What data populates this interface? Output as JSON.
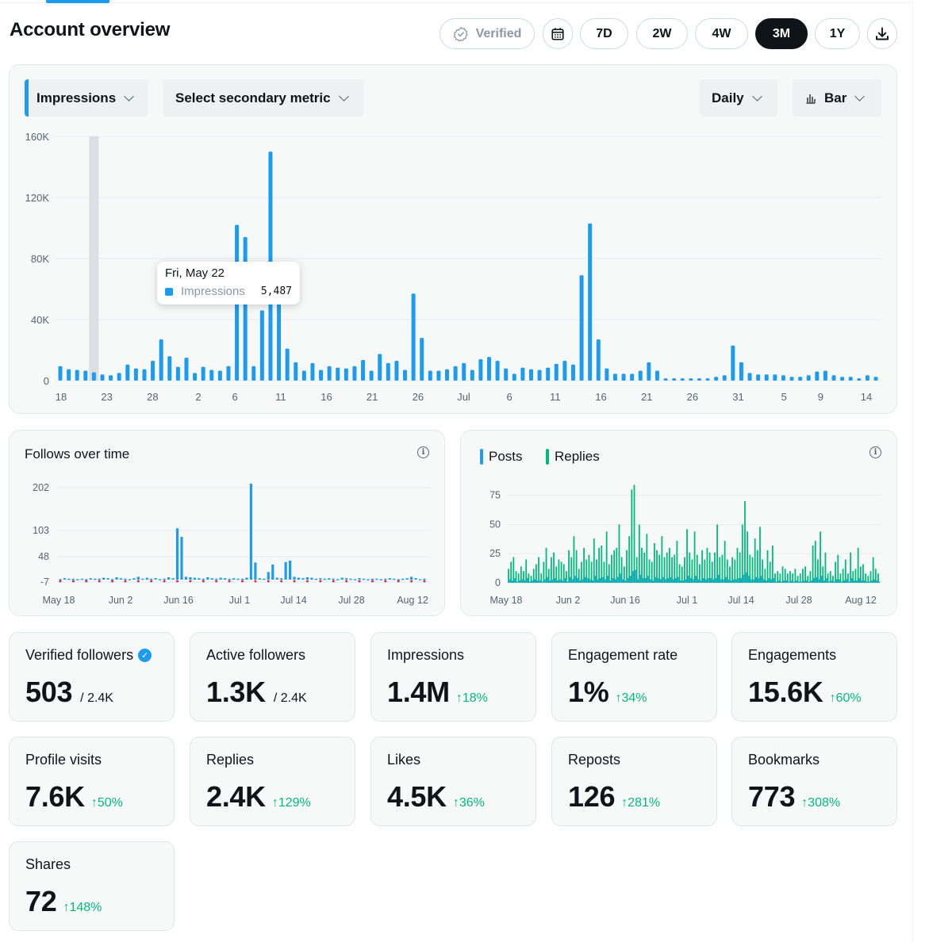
{
  "page": {
    "title": "Account overview"
  },
  "toolbar": {
    "verified_label": "Verified",
    "ranges": [
      {
        "label": "7D",
        "active": false
      },
      {
        "label": "2W",
        "active": false
      },
      {
        "label": "4W",
        "active": false
      },
      {
        "label": "3M",
        "active": true
      },
      {
        "label": "1Y",
        "active": false
      }
    ]
  },
  "main_chart": {
    "primary_metric": "Impressions",
    "secondary_metric_placeholder": "Select secondary metric",
    "granularity": "Daily",
    "chart_type_label": "Bar",
    "tooltip": {
      "date": "Fri, May 22",
      "series": "Impressions",
      "value": "5,487"
    }
  },
  "follows_chart": {
    "title": "Follows over time"
  },
  "posts_chart": {
    "legend": [
      "Posts",
      "Replies"
    ]
  },
  "chart_data": [
    {
      "type": "bar",
      "series": [
        {
          "name": "Impressions",
          "color": "#1d9bf0"
        }
      ],
      "y_ticks": [
        "0",
        "40K",
        "80K",
        "120K",
        "160K"
      ],
      "ylim": [
        0,
        160000
      ],
      "x_ticks": [
        "18",
        "23",
        "28",
        "2",
        "6",
        "11",
        "16",
        "21",
        "26",
        "Jul",
        "6",
        "11",
        "16",
        "21",
        "26",
        "31",
        "5",
        "9",
        "14"
      ],
      "highlight_index": 4,
      "values": [
        9500,
        7500,
        7000,
        6500,
        5487,
        4000,
        3500,
        5000,
        10500,
        8000,
        7500,
        13000,
        27000,
        16000,
        9000,
        15000,
        5000,
        9000,
        7000,
        6500,
        9500,
        102000,
        94000,
        9500,
        46000,
        150000,
        54000,
        21000,
        12000,
        6500,
        11500,
        7000,
        9500,
        8500,
        8000,
        9500,
        13500,
        6500,
        17500,
        11500,
        13000,
        7000,
        57000,
        28000,
        6500,
        6500,
        7500,
        9500,
        11500,
        7000,
        14000,
        15500,
        13000,
        8000,
        4500,
        8500,
        7500,
        7000,
        8500,
        11000,
        13000,
        10500,
        69000,
        103000,
        27000,
        8000,
        4500,
        4500,
        4500,
        6500,
        12000,
        6500,
        1500,
        1500,
        1500,
        1500,
        1500,
        1500,
        2500,
        3500,
        23000,
        12000,
        5000,
        4000,
        4000,
        4000,
        3500,
        2500,
        2500,
        3500,
        6000,
        6500,
        3500,
        2500,
        2500,
        1500,
        3500,
        2500
      ]
    },
    {
      "type": "bar",
      "title": "Follows over time",
      "series": [
        {
          "name": "Follows",
          "color": "#1d9bf0"
        }
      ],
      "y_ticks": [
        "-7",
        "48",
        "103",
        "202"
      ],
      "x_ticks": [
        "May 18",
        "Jun 2",
        "Jun 16",
        "Jul 1",
        "Jul 14",
        "Jul 28",
        "Aug 12"
      ],
      "values": [
        1,
        3,
        2,
        2,
        1,
        2,
        1,
        3,
        2,
        2,
        4,
        3,
        1,
        5,
        3,
        2,
        1,
        3,
        6,
        2,
        4,
        2,
        3,
        1,
        2,
        5,
        3,
        108,
        90,
        6,
        5,
        4,
        3,
        2,
        5,
        3,
        2,
        4,
        3,
        2,
        3,
        2,
        2,
        4,
        202,
        36,
        3,
        2,
        16,
        32,
        4,
        3,
        37,
        40,
        6,
        4,
        3,
        5,
        4,
        2,
        3,
        2,
        3,
        2,
        1,
        4,
        3,
        2,
        1,
        3,
        2,
        1,
        2,
        2,
        1,
        2,
        3,
        2,
        1,
        2,
        3,
        6,
        3,
        1,
        2
      ]
    },
    {
      "type": "bar",
      "series": [
        {
          "name": "Posts",
          "color": "#1d9bf0"
        },
        {
          "name": "Replies",
          "color": "#00ba7c"
        }
      ],
      "y_ticks": [
        "0",
        "25",
        "50",
        "75"
      ],
      "ylim": [
        0,
        85
      ],
      "x_ticks": [
        "May 18",
        "Jun 2",
        "Jun 16",
        "Jul 1",
        "Jul 14",
        "Jul 28",
        "Aug 12"
      ],
      "replies": [
        12,
        18,
        22,
        10,
        8,
        14,
        10,
        20,
        8,
        6,
        12,
        16,
        22,
        8,
        18,
        30,
        12,
        22,
        26,
        14,
        20,
        18,
        16,
        10,
        28,
        22,
        40,
        28,
        12,
        18,
        30,
        20,
        24,
        18,
        38,
        20,
        30,
        32,
        18,
        44,
        16,
        24,
        28,
        30,
        50,
        22,
        14,
        28,
        40,
        80,
        84,
        22,
        50,
        30,
        26,
        42,
        20,
        18,
        34,
        28,
        24,
        40,
        22,
        26,
        30,
        22,
        24,
        36,
        16,
        14,
        22,
        46,
        26,
        20,
        44,
        24,
        16,
        28,
        20,
        30,
        26,
        18,
        26,
        50,
        22,
        24,
        36,
        20,
        14,
        22,
        20,
        30,
        26,
        50,
        70,
        44,
        24,
        22,
        38,
        28,
        48,
        20,
        12,
        28,
        18,
        32,
        8,
        10,
        8,
        14,
        12,
        8,
        10,
        8,
        12,
        6,
        8,
        12,
        14,
        6,
        10,
        32,
        36,
        20,
        44,
        14,
        26,
        8,
        10,
        6,
        18,
        24,
        8,
        12,
        20,
        8,
        26,
        10,
        12,
        30,
        14,
        16,
        8,
        6,
        10,
        22,
        12,
        8
      ],
      "posts": [
        3,
        2,
        4,
        1,
        2,
        3,
        2,
        4,
        1,
        2,
        3,
        2,
        2,
        1,
        3,
        5,
        2,
        3,
        4,
        2,
        3,
        2,
        4,
        1,
        5,
        3,
        6,
        4,
        2,
        3,
        5,
        4,
        3,
        2,
        6,
        3,
        4,
        5,
        3,
        6,
        2,
        4,
        3,
        5,
        8,
        3,
        2,
        4,
        6,
        10,
        11,
        3,
        7,
        4,
        4,
        6,
        3,
        2,
        5,
        4,
        3,
        5,
        3,
        4,
        5,
        3,
        4,
        5,
        2,
        2,
        3,
        6,
        4,
        3,
        6,
        3,
        2,
        4,
        3,
        4,
        4,
        3,
        4,
        7,
        3,
        3,
        5,
        3,
        2,
        3,
        3,
        4,
        4,
        7,
        9,
        6,
        3,
        3,
        5,
        4,
        6,
        3,
        2,
        4,
        3,
        4,
        1,
        2,
        1,
        2,
        2,
        1,
        2,
        1,
        2,
        1,
        1,
        2,
        2,
        1,
        2,
        4,
        5,
        3,
        6,
        2,
        4,
        1,
        2,
        1,
        3,
        3,
        1,
        2,
        3,
        1,
        4,
        2,
        2,
        4,
        2,
        2,
        1,
        1,
        2,
        3,
        2,
        1
      ]
    }
  ],
  "stats": [
    {
      "label": "Verified followers",
      "value": "503",
      "sub": "/ 2.4K",
      "change": "",
      "verified": true
    },
    {
      "label": "Active followers",
      "value": "1.3K",
      "sub": "/ 2.4K",
      "change": ""
    },
    {
      "label": "Impressions",
      "value": "1.4M",
      "sub": "",
      "change": "↑18%"
    },
    {
      "label": "Engagement rate",
      "value": "1%",
      "sub": "",
      "change": "↑34%"
    },
    {
      "label": "Engagements",
      "value": "15.6K",
      "sub": "",
      "change": "↑60%"
    },
    {
      "label": "Profile visits",
      "value": "7.6K",
      "sub": "",
      "change": "↑50%"
    },
    {
      "label": "Replies",
      "value": "2.4K",
      "sub": "",
      "change": "↑129%"
    },
    {
      "label": "Likes",
      "value": "4.5K",
      "sub": "",
      "change": "↑36%"
    },
    {
      "label": "Reposts",
      "value": "126",
      "sub": "",
      "change": "↑281%"
    },
    {
      "label": "Bookmarks",
      "value": "773",
      "sub": "",
      "change": "↑308%"
    },
    {
      "label": "Shares",
      "value": "72",
      "sub": "",
      "change": "↑148%"
    }
  ],
  "colors": {
    "accent": "#1d9bf0",
    "positive": "#00ba7c",
    "replies": "#00ba7c",
    "text": "#0f1419",
    "muted": "#536471"
  },
  "icons": [
    "verified-check-icon",
    "calendar-icon",
    "download-icon",
    "chevron-down-icon",
    "bar-chart-icon",
    "info-icon",
    "verified-badge-icon"
  ]
}
